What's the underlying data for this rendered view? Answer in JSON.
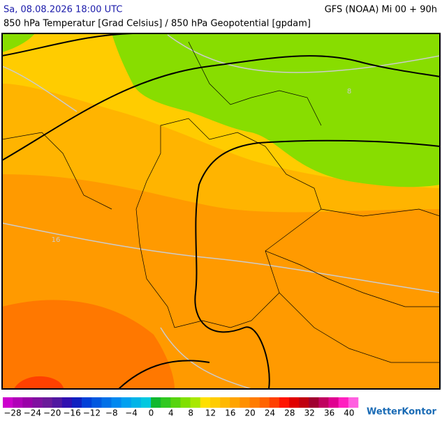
{
  "header": {
    "datetime": "Sa, 08.08.2026 18:00 UTC",
    "model": "GFS (NOAA) Mi 00 + 90h",
    "subtitle": "850 hPa Temperatur [Grad Celsius] / 850 hPa Geopotential [gpdam]"
  },
  "map": {
    "isotherm_labels": [
      "8",
      "16"
    ]
  },
  "colorbar": {
    "labels": [
      "−28",
      "−24",
      "−20",
      "−16",
      "−12",
      "−8",
      "−4",
      "0",
      "4",
      "8",
      "12",
      "16",
      "20",
      "24",
      "28",
      "32",
      "36",
      "40"
    ],
    "colors": [
      "#cc00cc",
      "#b000b8",
      "#9a00a8",
      "#8010a0",
      "#6a1a9a",
      "#5018a0",
      "#3010b0",
      "#1020c0",
      "#0040d8",
      "#0058e0",
      "#0070e8",
      "#0088f0",
      "#00a0f0",
      "#00b4e8",
      "#00c8e0",
      "#10b830",
      "#30c820",
      "#58d410",
      "#80e000",
      "#a8e800",
      "#ffe000",
      "#ffcc00",
      "#ffb800",
      "#ffa400",
      "#ff9000",
      "#ff7c00",
      "#ff6400",
      "#ff4000",
      "#ff1400",
      "#e00000",
      "#c00010",
      "#a00030",
      "#c00060",
      "#e00090",
      "#ff20c0",
      "#ff60e0"
    ]
  },
  "logo": "WetterKontor"
}
